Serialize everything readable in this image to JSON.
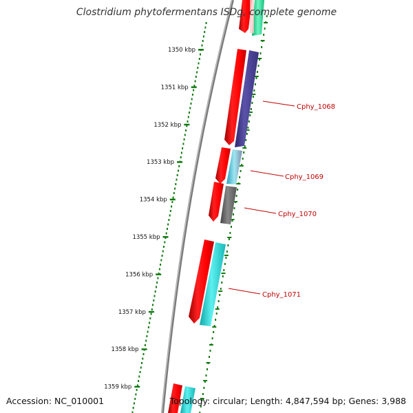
{
  "title": "Clostridium phytofermentans ISDg, complete genome",
  "accession": "Accession: NC_010001",
  "topology": "Topology: circular; Length: 4,847,594 bp; Genes: 3,988",
  "ticks": [
    {
      "label": "1350 kbp"
    },
    {
      "label": "1351 kbp"
    },
    {
      "label": "1352 kbp"
    },
    {
      "label": "1353 kbp"
    },
    {
      "label": "1354 kbp"
    },
    {
      "label": "1355 kbp"
    },
    {
      "label": "1356 kbp"
    },
    {
      "label": "1357 kbp"
    },
    {
      "label": "1358 kbp"
    },
    {
      "label": "1359 kbp"
    }
  ],
  "gene_labels": [
    "Cphy_1068",
    "Cphy_1069",
    "Cphy_1070",
    "Cphy_1071"
  ],
  "colors": {
    "cds": "#ee0000",
    "gene_1068": "#4a4291",
    "gene_1069": "#3fc5d6",
    "gene_1070": "#6a6a6a",
    "gene_1071": "#22d0cc",
    "gene_top": "#2ad796",
    "tick": "#127a12",
    "label": "#c00000",
    "backbone": "#8a8a8a"
  }
}
